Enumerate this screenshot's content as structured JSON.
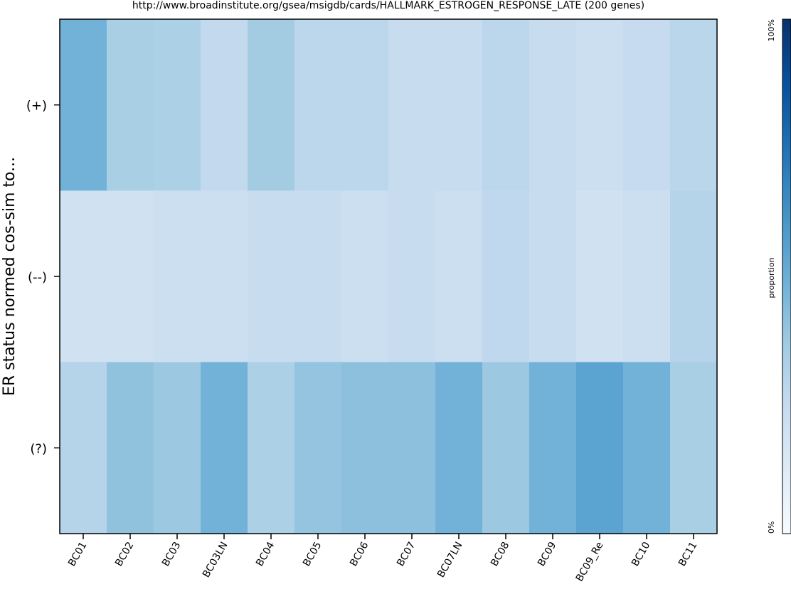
{
  "chart_data": {
    "type": "heatmap",
    "title": "http://www.broadinstitute.org/gsea/msigdb/cards/HALLMARK_ESTROGEN_RESPONSE_LATE (200 genes)",
    "ylabel": "ER status normed cos-sim to...",
    "xlabel": "",
    "columns": [
      "BC01",
      "BC02",
      "BC03",
      "BC03LN",
      "BC04",
      "BC05",
      "BC06",
      "BC07",
      "BC07LN",
      "BC08",
      "BC09",
      "BC09_Re",
      "BC10",
      "BC11"
    ],
    "rows": [
      "(+)",
      "(--)",
      "(?)"
    ],
    "values": [
      [
        0.48,
        0.34,
        0.33,
        0.26,
        0.36,
        0.28,
        0.28,
        0.24,
        0.24,
        0.28,
        0.24,
        0.22,
        0.25,
        0.29
      ],
      [
        0.2,
        0.2,
        0.22,
        0.22,
        0.24,
        0.24,
        0.22,
        0.24,
        0.22,
        0.27,
        0.24,
        0.2,
        0.22,
        0.3
      ],
      [
        0.3,
        0.41,
        0.38,
        0.48,
        0.33,
        0.4,
        0.42,
        0.42,
        0.48,
        0.38,
        0.48,
        0.55,
        0.48,
        0.34
      ]
    ],
    "colorbar": {
      "label": "proportion",
      "min_label": "0%",
      "max_label": "100%",
      "range": [
        0,
        1
      ],
      "colormap": "Blues",
      "colors": [
        "#f7fbff",
        "#deebf7",
        "#c6dbef",
        "#9ecae1",
        "#6baed6",
        "#4292c6",
        "#2171b5",
        "#08519c",
        "#08306b"
      ]
    }
  }
}
